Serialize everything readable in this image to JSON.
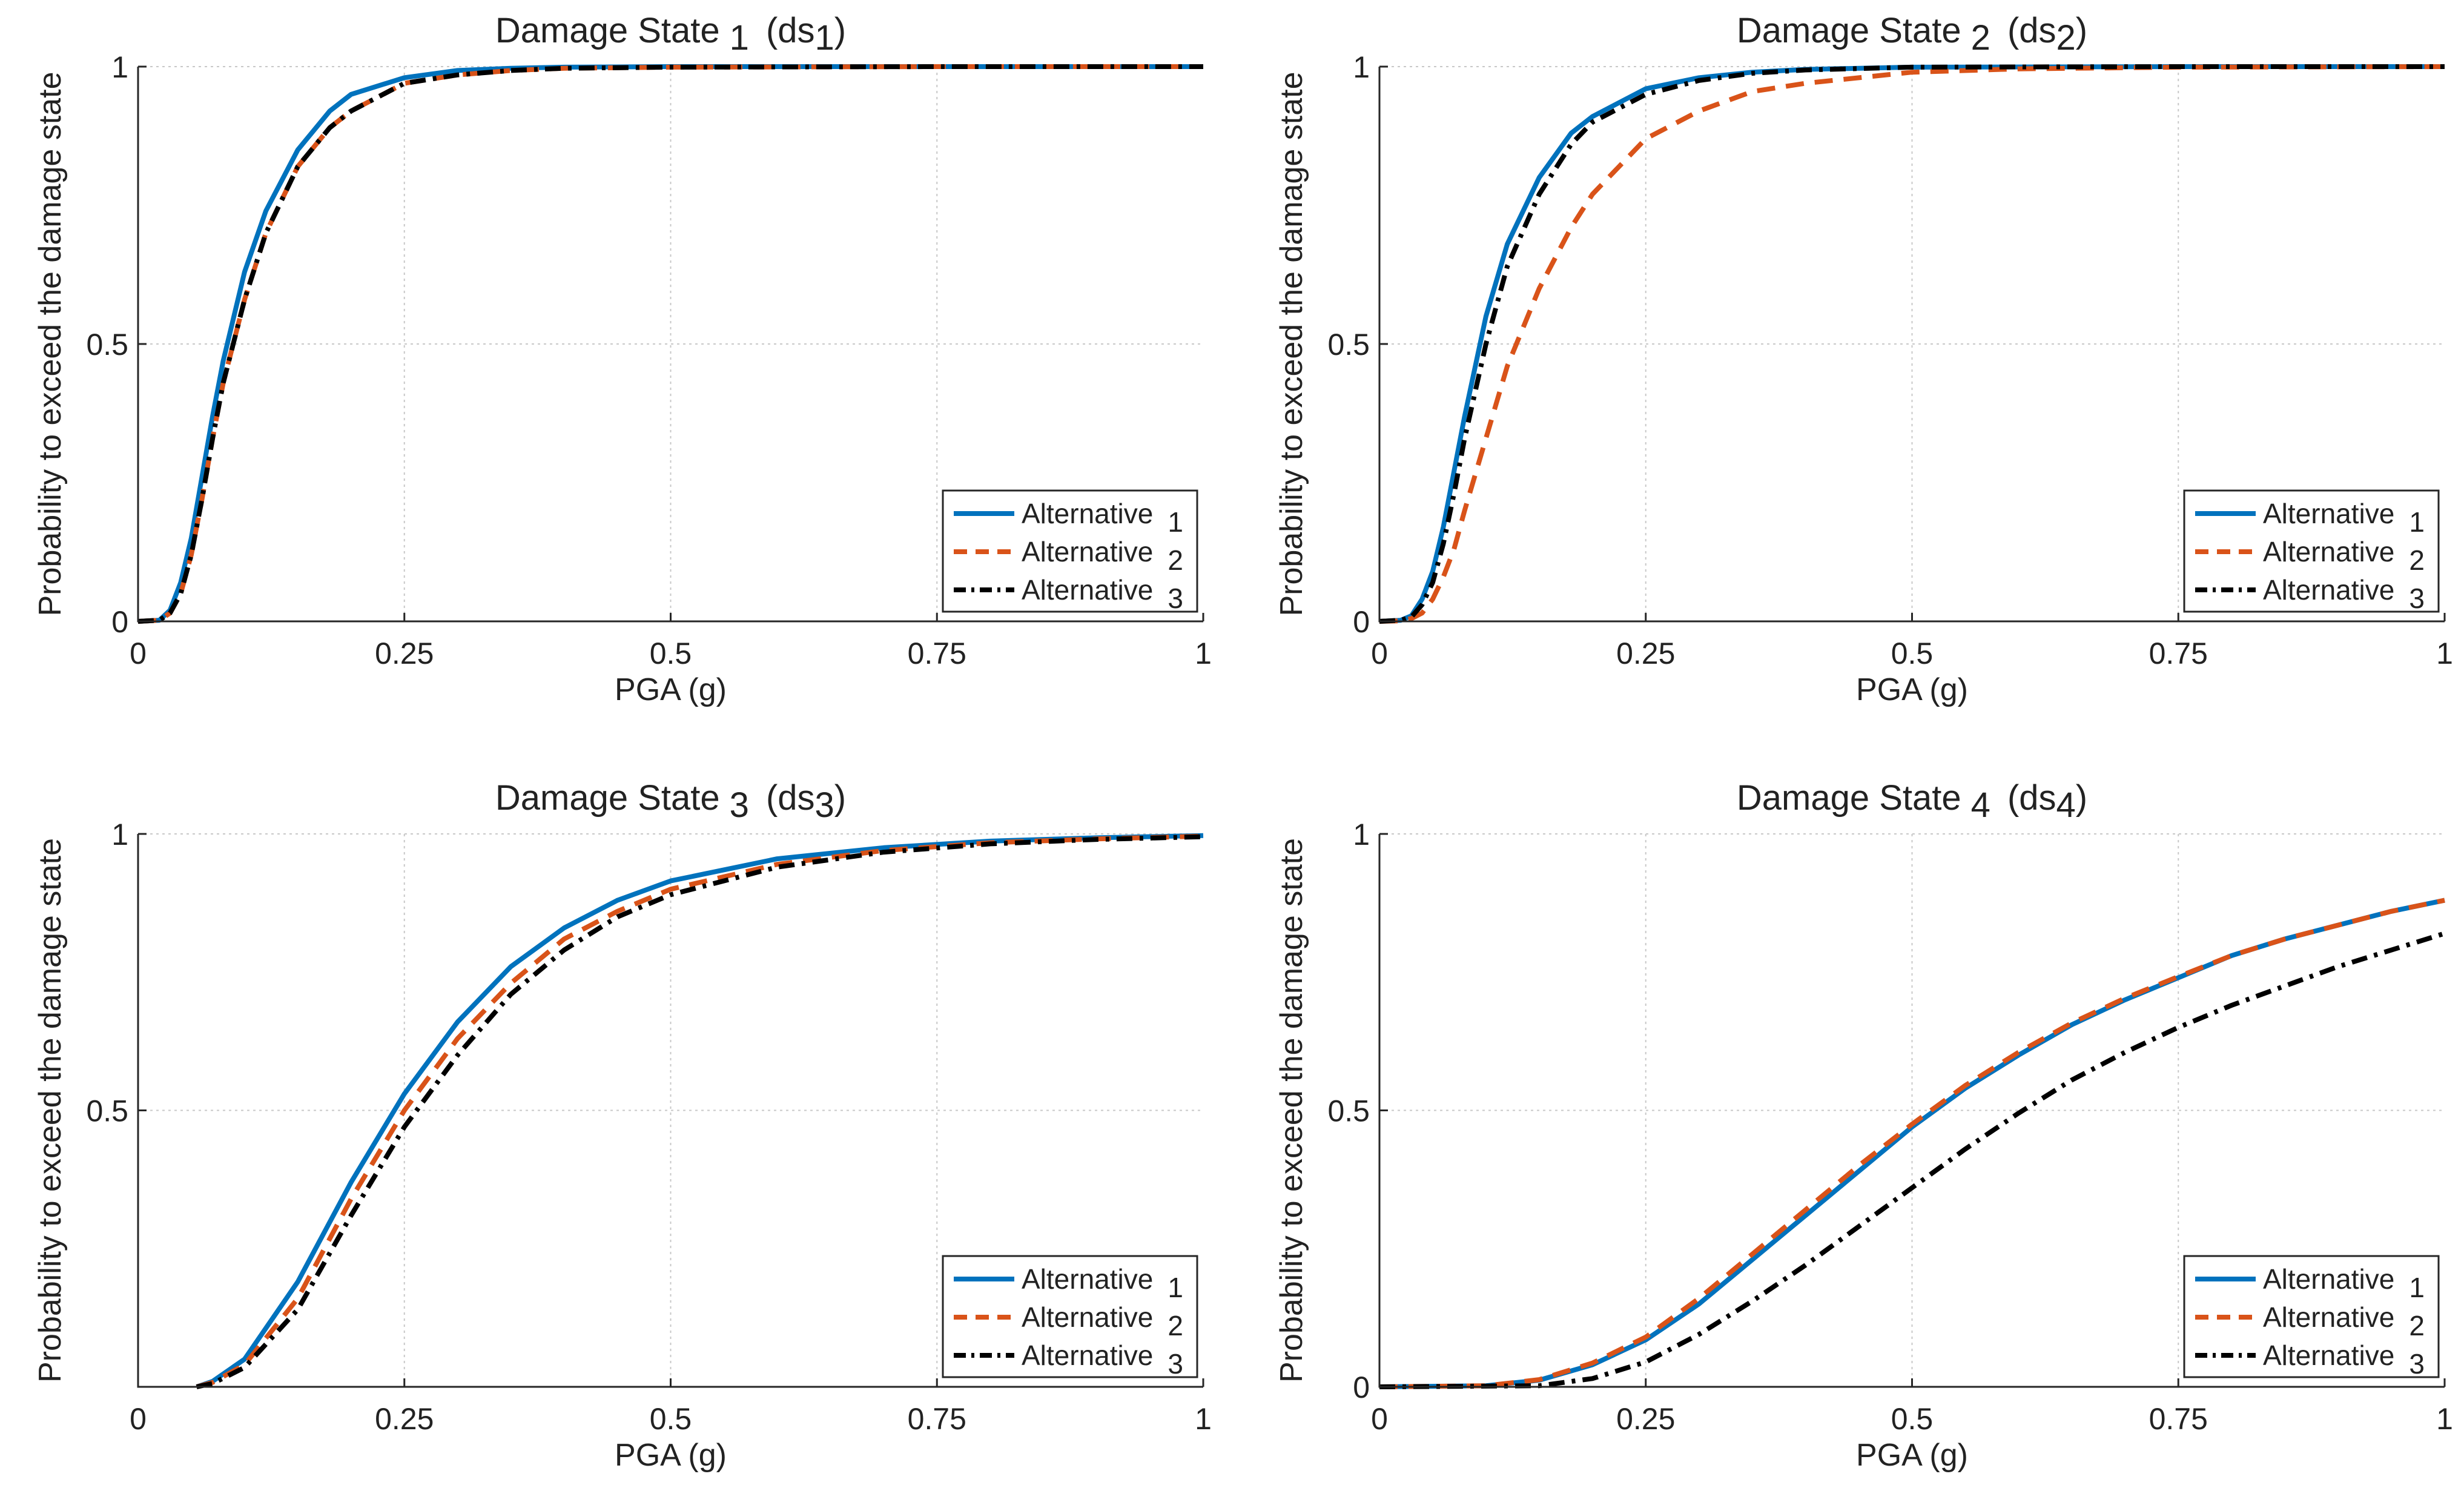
{
  "colors": {
    "alt1": "#0072BD",
    "alt2": "#D95319",
    "alt3": "#000000",
    "grid": "#c8c8c8",
    "axis": "#262626"
  },
  "chart_data": [
    {
      "type": "line",
      "title": "Damage State 1 (ds1)",
      "title_parts": [
        "Damage State",
        "1",
        "(ds",
        "1",
        ")"
      ],
      "xlabel": "PGA (g)",
      "ylabel": "Probability to exceed the damage state",
      "xlim": [
        0,
        1
      ],
      "ylim": [
        0,
        1
      ],
      "xticks": [
        0,
        0.25,
        0.5,
        0.75,
        1
      ],
      "xtick_labels": [
        "0",
        "0.25",
        "0.5",
        "0.75",
        "1"
      ],
      "yticks": [
        0,
        0.5,
        1
      ],
      "ytick_labels": [
        "0",
        "0.5",
        "1"
      ],
      "grid": true,
      "legend": "bottom-right",
      "legend_labels": [
        [
          "Alternative",
          "1"
        ],
        [
          "Alternative",
          "2"
        ],
        [
          "Alternative",
          "3"
        ]
      ],
      "series": [
        {
          "name": "Alternative 1",
          "style": "solid",
          "color": "#0072BD",
          "x": [
            0,
            0.02,
            0.03,
            0.04,
            0.05,
            0.06,
            0.07,
            0.08,
            0.1,
            0.12,
            0.15,
            0.18,
            0.2,
            0.25,
            0.3,
            0.35,
            0.4,
            0.5,
            0.75,
            1
          ],
          "y": [
            0,
            0.002,
            0.02,
            0.07,
            0.15,
            0.26,
            0.37,
            0.47,
            0.63,
            0.74,
            0.85,
            0.92,
            0.95,
            0.98,
            0.993,
            0.997,
            0.999,
            1,
            1,
            1
          ]
        },
        {
          "name": "Alternative 2",
          "style": "dashed",
          "color": "#D95319",
          "x": [
            0,
            0.02,
            0.03,
            0.04,
            0.05,
            0.06,
            0.07,
            0.08,
            0.1,
            0.12,
            0.15,
            0.18,
            0.2,
            0.25,
            0.3,
            0.35,
            0.4,
            0.5,
            0.75,
            1
          ],
          "y": [
            0,
            0.002,
            0.015,
            0.05,
            0.12,
            0.22,
            0.33,
            0.43,
            0.58,
            0.7,
            0.82,
            0.89,
            0.92,
            0.97,
            0.985,
            0.993,
            0.997,
            0.999,
            1,
            1
          ]
        },
        {
          "name": "Alternative 3",
          "style": "dashdot",
          "color": "#000000",
          "x": [
            0,
            0.02,
            0.03,
            0.04,
            0.05,
            0.06,
            0.07,
            0.08,
            0.1,
            0.12,
            0.15,
            0.18,
            0.2,
            0.25,
            0.3,
            0.35,
            0.4,
            0.5,
            0.75,
            1
          ],
          "y": [
            0,
            0.002,
            0.015,
            0.05,
            0.12,
            0.22,
            0.33,
            0.43,
            0.58,
            0.7,
            0.82,
            0.89,
            0.92,
            0.97,
            0.985,
            0.993,
            0.997,
            0.999,
            1,
            1
          ]
        }
      ]
    },
    {
      "type": "line",
      "title": "Damage State 2 (ds2)",
      "title_parts": [
        "Damage State",
        "2",
        "(ds",
        "2",
        ")"
      ],
      "xlabel": "PGA (g)",
      "ylabel": "Probability to exceed the damage state",
      "xlim": [
        0,
        1
      ],
      "ylim": [
        0,
        1
      ],
      "xticks": [
        0,
        0.25,
        0.5,
        0.75,
        1
      ],
      "xtick_labels": [
        "0",
        "0.25",
        "0.5",
        "0.75",
        "1"
      ],
      "yticks": [
        0,
        0.5,
        1
      ],
      "ytick_labels": [
        "0",
        "0.5",
        "1"
      ],
      "grid": true,
      "legend": "bottom-right",
      "legend_labels": [
        [
          "Alternative",
          "1"
        ],
        [
          "Alternative",
          "2"
        ],
        [
          "Alternative",
          "3"
        ]
      ],
      "series": [
        {
          "name": "Alternative 1",
          "style": "solid",
          "color": "#0072BD",
          "x": [
            0,
            0.02,
            0.03,
            0.04,
            0.05,
            0.06,
            0.07,
            0.08,
            0.1,
            0.12,
            0.15,
            0.18,
            0.2,
            0.25,
            0.3,
            0.35,
            0.4,
            0.5,
            0.75,
            1
          ],
          "y": [
            0,
            0.002,
            0.01,
            0.04,
            0.09,
            0.17,
            0.27,
            0.37,
            0.55,
            0.68,
            0.8,
            0.88,
            0.91,
            0.96,
            0.98,
            0.99,
            0.995,
            0.999,
            1,
            1
          ]
        },
        {
          "name": "Alternative 2",
          "style": "dashed",
          "color": "#D95319",
          "x": [
            0,
            0.02,
            0.03,
            0.04,
            0.05,
            0.06,
            0.07,
            0.08,
            0.1,
            0.12,
            0.15,
            0.18,
            0.2,
            0.25,
            0.3,
            0.35,
            0.4,
            0.5,
            0.6,
            0.75,
            1
          ],
          "y": [
            0,
            0.001,
            0.005,
            0.015,
            0.04,
            0.08,
            0.13,
            0.2,
            0.33,
            0.46,
            0.6,
            0.71,
            0.77,
            0.87,
            0.92,
            0.955,
            0.97,
            0.99,
            0.996,
            0.999,
            1
          ]
        },
        {
          "name": "Alternative 3",
          "style": "dashdot",
          "color": "#000000",
          "x": [
            0,
            0.02,
            0.03,
            0.04,
            0.05,
            0.06,
            0.07,
            0.08,
            0.1,
            0.12,
            0.15,
            0.18,
            0.2,
            0.25,
            0.3,
            0.35,
            0.4,
            0.5,
            0.75,
            1
          ],
          "y": [
            0,
            0.002,
            0.008,
            0.03,
            0.07,
            0.14,
            0.23,
            0.33,
            0.5,
            0.64,
            0.77,
            0.86,
            0.9,
            0.95,
            0.975,
            0.988,
            0.994,
            0.999,
            1,
            1
          ]
        }
      ]
    },
    {
      "type": "line",
      "title": "Damage State 3 (ds3)",
      "title_parts": [
        "Damage State",
        "3",
        "(ds",
        "3",
        ")"
      ],
      "xlabel": "PGA (g)",
      "ylabel": "Probability to exceed the damage state",
      "xlim": [
        0,
        1
      ],
      "ylim": [
        0,
        1
      ],
      "xticks": [
        0,
        0.25,
        0.5,
        0.75,
        1
      ],
      "xtick_labels": [
        "0",
        "0.25",
        "0.5",
        "0.75",
        "1"
      ],
      "yticks": [
        0.5,
        1
      ],
      "ytick_labels": [
        "0.5",
        "1"
      ],
      "grid": true,
      "legend": "bottom-right",
      "legend_labels": [
        [
          "Alternative",
          "1"
        ],
        [
          "Alternative",
          "2"
        ],
        [
          "Alternative",
          "3"
        ]
      ],
      "series": [
        {
          "name": "Alternative 1",
          "style": "solid",
          "color": "#0072BD",
          "x": [
            0.055,
            0.07,
            0.1,
            0.15,
            0.2,
            0.25,
            0.3,
            0.35,
            0.4,
            0.45,
            0.5,
            0.6,
            0.7,
            0.8,
            0.9,
            1
          ],
          "y": [
            0,
            0.01,
            0.05,
            0.19,
            0.37,
            0.53,
            0.66,
            0.76,
            0.83,
            0.88,
            0.915,
            0.955,
            0.975,
            0.987,
            0.993,
            0.997
          ]
        },
        {
          "name": "Alternative 2",
          "style": "dashed",
          "color": "#D95319",
          "x": [
            0.055,
            0.07,
            0.1,
            0.15,
            0.2,
            0.25,
            0.3,
            0.35,
            0.4,
            0.45,
            0.5,
            0.6,
            0.7,
            0.8,
            0.9,
            1
          ],
          "y": [
            0,
            0.008,
            0.04,
            0.16,
            0.34,
            0.5,
            0.63,
            0.73,
            0.81,
            0.86,
            0.9,
            0.945,
            0.97,
            0.984,
            0.991,
            0.996
          ]
        },
        {
          "name": "Alternative 3",
          "style": "dashdot",
          "color": "#000000",
          "x": [
            0.055,
            0.07,
            0.1,
            0.15,
            0.2,
            0.25,
            0.3,
            0.35,
            0.4,
            0.45,
            0.5,
            0.6,
            0.7,
            0.8,
            0.9,
            1
          ],
          "y": [
            0,
            0.006,
            0.035,
            0.14,
            0.31,
            0.47,
            0.6,
            0.71,
            0.79,
            0.85,
            0.89,
            0.94,
            0.967,
            0.982,
            0.99,
            0.995
          ]
        }
      ]
    },
    {
      "type": "line",
      "title": "Damage State 4 (ds4)",
      "title_parts": [
        "Damage State",
        "4",
        "(ds",
        "4",
        ")"
      ],
      "xlabel": "PGA (g)",
      "ylabel": "Probability to exceed the damage state",
      "xlim": [
        0,
        1
      ],
      "ylim": [
        0,
        1
      ],
      "xticks": [
        0,
        0.25,
        0.5,
        0.75,
        1
      ],
      "xtick_labels": [
        "0",
        "0.25",
        "0.5",
        "0.75",
        "1"
      ],
      "yticks": [
        0,
        0.5,
        1
      ],
      "ytick_labels": [
        "0",
        "0.5",
        "1"
      ],
      "grid": true,
      "legend": "bottom-right",
      "legend_labels": [
        [
          "Alternative",
          "1"
        ],
        [
          "Alternative",
          "2"
        ],
        [
          "Alternative",
          "3"
        ]
      ],
      "series": [
        {
          "name": "Alternative 1",
          "style": "solid",
          "color": "#0072BD",
          "x": [
            0,
            0.1,
            0.15,
            0.2,
            0.25,
            0.3,
            0.35,
            0.4,
            0.45,
            0.5,
            0.55,
            0.6,
            0.65,
            0.7,
            0.75,
            0.8,
            0.85,
            0.9,
            0.95,
            1
          ],
          "y": [
            0,
            0.002,
            0.012,
            0.04,
            0.085,
            0.15,
            0.23,
            0.31,
            0.39,
            0.47,
            0.54,
            0.6,
            0.655,
            0.7,
            0.74,
            0.78,
            0.81,
            0.835,
            0.86,
            0.88
          ]
        },
        {
          "name": "Alternative 2",
          "style": "dashed",
          "color": "#D95319",
          "x": [
            0,
            0.1,
            0.15,
            0.2,
            0.25,
            0.3,
            0.35,
            0.4,
            0.45,
            0.5,
            0.55,
            0.6,
            0.65,
            0.7,
            0.75,
            0.8,
            0.85,
            0.9,
            0.95,
            1
          ],
          "y": [
            0,
            0.002,
            0.013,
            0.043,
            0.09,
            0.16,
            0.24,
            0.32,
            0.4,
            0.475,
            0.545,
            0.605,
            0.658,
            0.703,
            0.742,
            0.78,
            0.81,
            0.835,
            0.86,
            0.88
          ]
        },
        {
          "name": "Alternative 3",
          "style": "dashdot",
          "color": "#000000",
          "x": [
            0,
            0.15,
            0.2,
            0.25,
            0.3,
            0.35,
            0.4,
            0.45,
            0.5,
            0.55,
            0.6,
            0.65,
            0.7,
            0.75,
            0.8,
            0.85,
            0.9,
            0.95,
            1
          ],
          "y": [
            0,
            0.002,
            0.015,
            0.045,
            0.095,
            0.155,
            0.22,
            0.29,
            0.36,
            0.43,
            0.495,
            0.555,
            0.605,
            0.65,
            0.69,
            0.725,
            0.76,
            0.79,
            0.82
          ]
        }
      ]
    }
  ]
}
